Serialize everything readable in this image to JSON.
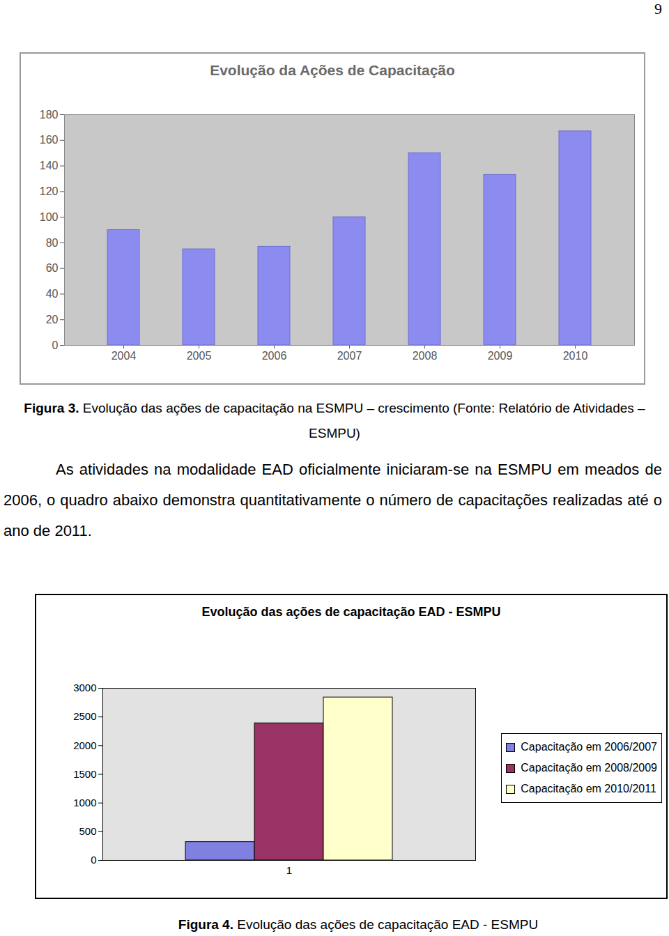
{
  "page_number": "9",
  "chart_data": [
    {
      "type": "bar",
      "title": "Evolução da Ações de Capacitação",
      "categories": [
        "2004",
        "2005",
        "2006",
        "2007",
        "2008",
        "2009",
        "2010"
      ],
      "values": [
        90,
        75,
        77,
        100,
        150,
        133,
        167
      ],
      "color": "#8c8cf0",
      "ylim": [
        0,
        180
      ],
      "yticks": [
        0,
        20,
        40,
        60,
        80,
        100,
        120,
        140,
        160,
        180
      ],
      "grid": false
    },
    {
      "type": "bar",
      "title": "Evolução das ações de capacitação EAD - ESMPU",
      "categories": [
        "1"
      ],
      "series": [
        {
          "name": "Capacitação em 2006/2007",
          "color": "#8080e0",
          "values": [
            320
          ]
        },
        {
          "name": "Capacitação em 2008/2009",
          "color": "#993366",
          "values": [
            2390
          ]
        },
        {
          "name": "Capacitação em 2010/2011",
          "color": "#ffffcc",
          "values": [
            2840
          ]
        }
      ],
      "ylim": [
        0,
        3000
      ],
      "yticks": [
        0,
        500,
        1000,
        1500,
        2000,
        2500,
        3000
      ],
      "grid": true,
      "legend": "right"
    }
  ],
  "captions": [
    {
      "label": "Figura 3.",
      "text": "Evolução das ações de capacitação na ESMPU – crescimento (Fonte: Relatório de Atividades – ESMPU)"
    },
    {
      "label": "Figura 4.",
      "text": "Evolução das ações de capacitação EAD - ESMPU"
    }
  ],
  "paragraph": "As atividades na modalidade EAD oficialmente iniciaram-se na ESMPU em meados de 2006, o quadro abaixo demonstra quantitativamente o número de capacitações realizadas até o ano de 2011."
}
